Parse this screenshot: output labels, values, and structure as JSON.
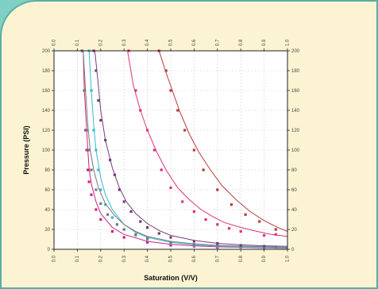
{
  "chart_data": {
    "type": "scatter",
    "title": "",
    "xlabel": "Saturation (V/V)",
    "ylabel": "Pressure (PSI)",
    "xlim": [
      0,
      1
    ],
    "ylim": [
      0,
      200
    ],
    "x_ticks": [
      "0.0",
      "0.1",
      "0.2",
      "0.3",
      "0.4",
      "0.5",
      "0.6",
      "0.7",
      "0.8",
      "0.9",
      "1.0"
    ],
    "y_ticks": [
      "0",
      "20",
      "40",
      "60",
      "80",
      "100",
      "120",
      "140",
      "160",
      "180",
      "200"
    ],
    "grid": true,
    "series": [
      {
        "color": "#cc2288",
        "points": [
          [
            0.12,
            200
          ],
          [
            0.13,
            160
          ],
          [
            0.135,
            120
          ],
          [
            0.14,
            100
          ],
          [
            0.145,
            80
          ],
          [
            0.15,
            68
          ],
          [
            0.16,
            55
          ],
          [
            0.18,
            40
          ],
          [
            0.2,
            30
          ],
          [
            0.25,
            18
          ],
          [
            0.3,
            12
          ],
          [
            0.4,
            7
          ],
          [
            0.5,
            4
          ],
          [
            0.6,
            3
          ],
          [
            0.7,
            2
          ],
          [
            0.8,
            2
          ],
          [
            0.9,
            1
          ],
          [
            0.95,
            2
          ]
        ],
        "curve": [
          [
            0.125,
            200
          ],
          [
            0.13,
            160
          ],
          [
            0.14,
            120
          ],
          [
            0.145,
            100
          ],
          [
            0.15,
            82
          ],
          [
            0.16,
            66
          ],
          [
            0.18,
            48
          ],
          [
            0.2,
            36
          ],
          [
            0.25,
            22
          ],
          [
            0.3,
            15
          ],
          [
            0.4,
            8
          ],
          [
            0.5,
            5
          ],
          [
            0.6,
            3.5
          ],
          [
            0.7,
            2.5
          ],
          [
            0.8,
            2
          ],
          [
            0.9,
            1.5
          ],
          [
            1.0,
            1
          ]
        ]
      },
      {
        "color": "#33bcd0",
        "points": [
          [
            0.15,
            200
          ],
          [
            0.16,
            160
          ],
          [
            0.17,
            120
          ],
          [
            0.18,
            100
          ],
          [
            0.19,
            80
          ],
          [
            0.2,
            60
          ],
          [
            0.22,
            45
          ],
          [
            0.25,
            32
          ],
          [
            0.3,
            20
          ],
          [
            0.35,
            14
          ],
          [
            0.4,
            10
          ],
          [
            0.5,
            6
          ],
          [
            0.6,
            4
          ],
          [
            0.7,
            3
          ],
          [
            0.8,
            2
          ],
          [
            0.9,
            2
          ]
        ],
        "curve": [
          [
            0.15,
            200
          ],
          [
            0.16,
            160
          ],
          [
            0.17,
            125
          ],
          [
            0.18,
            100
          ],
          [
            0.2,
            72
          ],
          [
            0.22,
            55
          ],
          [
            0.25,
            40
          ],
          [
            0.3,
            25
          ],
          [
            0.35,
            17
          ],
          [
            0.4,
            12
          ],
          [
            0.5,
            7
          ],
          [
            0.6,
            4.5
          ],
          [
            0.7,
            3.2
          ],
          [
            0.8,
            2.4
          ],
          [
            0.9,
            1.8
          ],
          [
            1.0,
            1.2
          ]
        ]
      },
      {
        "color": "#777777",
        "points": [
          [
            0.12,
            200
          ],
          [
            0.13,
            160
          ],
          [
            0.14,
            120
          ],
          [
            0.15,
            100
          ],
          [
            0.16,
            80
          ],
          [
            0.18,
            60
          ],
          [
            0.2,
            46
          ],
          [
            0.23,
            35
          ],
          [
            0.27,
            25
          ],
          [
            0.3,
            20
          ],
          [
            0.35,
            15
          ],
          [
            0.4,
            11
          ],
          [
            0.5,
            7
          ],
          [
            0.6,
            5
          ],
          [
            0.7,
            4
          ],
          [
            0.8,
            3
          ],
          [
            0.9,
            3
          ]
        ],
        "curve": [
          [
            0.125,
            200
          ],
          [
            0.135,
            160
          ],
          [
            0.145,
            125
          ],
          [
            0.155,
            100
          ],
          [
            0.17,
            80
          ],
          [
            0.19,
            62
          ],
          [
            0.22,
            46
          ],
          [
            0.26,
            34
          ],
          [
            0.3,
            25
          ],
          [
            0.35,
            18
          ],
          [
            0.4,
            13
          ],
          [
            0.5,
            8
          ],
          [
            0.6,
            5.5
          ],
          [
            0.7,
            4
          ],
          [
            0.8,
            3.2
          ],
          [
            0.9,
            2.6
          ],
          [
            1.0,
            2
          ]
        ]
      },
      {
        "color": "#7a3a7a",
        "points": [
          [
            0.17,
            200
          ],
          [
            0.18,
            180
          ],
          [
            0.19,
            150
          ],
          [
            0.2,
            130
          ],
          [
            0.22,
            110
          ],
          [
            0.24,
            90
          ],
          [
            0.26,
            75
          ],
          [
            0.28,
            60
          ],
          [
            0.3,
            48
          ],
          [
            0.33,
            38
          ],
          [
            0.37,
            28
          ],
          [
            0.4,
            22
          ],
          [
            0.45,
            16
          ],
          [
            0.5,
            12
          ],
          [
            0.6,
            8
          ],
          [
            0.7,
            6
          ],
          [
            0.8,
            4
          ],
          [
            0.9,
            3
          ]
        ],
        "curve": [
          [
            0.175,
            200
          ],
          [
            0.19,
            165
          ],
          [
            0.2,
            140
          ],
          [
            0.22,
            110
          ],
          [
            0.25,
            82
          ],
          [
            0.28,
            62
          ],
          [
            0.31,
            48
          ],
          [
            0.35,
            36
          ],
          [
            0.4,
            26
          ],
          [
            0.45,
            19
          ],
          [
            0.5,
            14
          ],
          [
            0.6,
            9
          ],
          [
            0.7,
            6
          ],
          [
            0.8,
            4.5
          ],
          [
            0.9,
            3.5
          ],
          [
            1.0,
            3
          ]
        ]
      },
      {
        "color": "#e0307a",
        "points": [
          [
            0.32,
            200
          ],
          [
            0.35,
            160
          ],
          [
            0.37,
            140
          ],
          [
            0.4,
            120
          ],
          [
            0.43,
            100
          ],
          [
            0.46,
            80
          ],
          [
            0.5,
            62
          ],
          [
            0.55,
            48
          ],
          [
            0.6,
            38
          ],
          [
            0.65,
            30
          ],
          [
            0.7,
            25
          ],
          [
            0.75,
            21
          ],
          [
            0.8,
            18
          ],
          [
            0.9,
            14
          ],
          [
            0.95,
            15
          ]
        ],
        "curve": [
          [
            0.315,
            200
          ],
          [
            0.34,
            165
          ],
          [
            0.37,
            140
          ],
          [
            0.4,
            120
          ],
          [
            0.44,
            98
          ],
          [
            0.48,
            80
          ],
          [
            0.53,
            62
          ],
          [
            0.58,
            50
          ],
          [
            0.63,
            40
          ],
          [
            0.68,
            33
          ],
          [
            0.73,
            27
          ],
          [
            0.8,
            22
          ],
          [
            0.87,
            18
          ],
          [
            0.93,
            15
          ],
          [
            1.0,
            13
          ]
        ]
      },
      {
        "color": "#b83a3a",
        "points": [
          [
            0.45,
            200
          ],
          [
            0.48,
            180
          ],
          [
            0.5,
            160
          ],
          [
            0.53,
            140
          ],
          [
            0.56,
            120
          ],
          [
            0.6,
            100
          ],
          [
            0.64,
            80
          ],
          [
            0.7,
            60
          ],
          [
            0.76,
            45
          ],
          [
            0.82,
            35
          ],
          [
            0.88,
            28
          ],
          [
            0.95,
            20
          ]
        ],
        "curve": [
          [
            0.45,
            200
          ],
          [
            0.48,
            178
          ],
          [
            0.51,
            158
          ],
          [
            0.54,
            138
          ],
          [
            0.58,
            116
          ],
          [
            0.62,
            98
          ],
          [
            0.67,
            80
          ],
          [
            0.72,
            64
          ],
          [
            0.78,
            50
          ],
          [
            0.84,
            38
          ],
          [
            0.9,
            29
          ],
          [
            0.95,
            23
          ],
          [
            1.0,
            18
          ]
        ]
      }
    ]
  }
}
